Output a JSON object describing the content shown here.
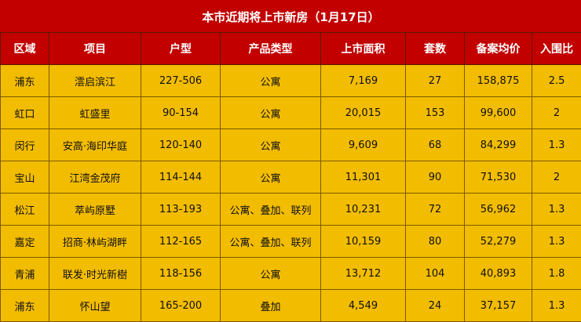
{
  "title": "本市近期将上市新房（1月17日）",
  "colors": {
    "header_bg": "#c20000",
    "row_bg": "#f2bc00"
  },
  "columns": [
    "区域",
    "项目",
    "户型",
    "产品类型",
    "上市面积",
    "套数",
    "备案均价",
    "入围比"
  ],
  "rows": [
    [
      "浦东",
      "澐启滨江",
      "227-506",
      "公寓",
      "7,169",
      "27",
      "158,875",
      "2.5"
    ],
    [
      "虹口",
      "虹盛里",
      "90-154",
      "公寓",
      "20,015",
      "153",
      "99,600",
      "2"
    ],
    [
      "闵行",
      "安高·海印华庭",
      "120-140",
      "公寓",
      "9,609",
      "68",
      "84,299",
      "1.3"
    ],
    [
      "宝山",
      "江湾金茂府",
      "114-144",
      "公寓",
      "11,301",
      "90",
      "71,530",
      "2"
    ],
    [
      "松江",
      "萃屿原墅",
      "113-193",
      "公寓、叠加、联列",
      "10,231",
      "72",
      "56,962",
      "1.3"
    ],
    [
      "嘉定",
      "招商·林屿湖畔",
      "112-165",
      "公寓、叠加、联列",
      "10,159",
      "80",
      "52,279",
      "1.3"
    ],
    [
      "青浦",
      "联发·时光新樹",
      "118-156",
      "公寓",
      "13,712",
      "104",
      "40,893",
      "1.8"
    ],
    [
      "浦东",
      "怀山望",
      "165-200",
      "叠加",
      "4,549",
      "24",
      "37,157",
      "1.3"
    ]
  ]
}
